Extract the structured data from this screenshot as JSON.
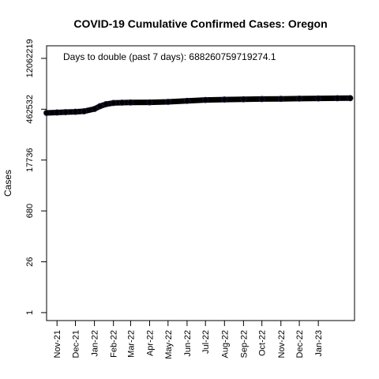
{
  "chart_data": {
    "type": "line",
    "title": "COVID-19 Cumulative Confirmed Cases: Oregon",
    "xlabel": "",
    "ylabel": "Cases",
    "y_scale": "log",
    "annotation": "Days to double (past 7 days): 688260759719274.1",
    "y_ticks": [
      "1",
      "26",
      "680",
      "17736",
      "462532",
      "12062219"
    ],
    "y_tick_values": [
      1,
      26,
      680,
      17736,
      462532,
      12062219
    ],
    "x_ticks": [
      "Nov-21",
      "Dec-21",
      "Jan-22",
      "Feb-22",
      "Mar-22",
      "Apr-22",
      "May-22",
      "Jun-22",
      "Jul-22",
      "Aug-22",
      "Sep-22",
      "Oct-22",
      "Nov-22",
      "Dec-22",
      "Jan-23"
    ],
    "x_tick_dates": [
      "2021-11-01",
      "2021-12-01",
      "2022-01-01",
      "2022-02-01",
      "2022-03-01",
      "2022-04-01",
      "2022-05-01",
      "2022-06-01",
      "2022-07-01",
      "2022-08-01",
      "2022-09-01",
      "2022-10-01",
      "2022-11-01",
      "2022-12-01",
      "2023-01-01"
    ],
    "xlim": [
      "2021-10-15",
      "2023-03-01"
    ],
    "ylim": [
      0.6,
      27000000
    ],
    "grid": false,
    "series": [
      {
        "color": "#000000",
        "points": [
          [
            "2021-10-15",
            365000
          ],
          [
            "2021-11-01",
            375000
          ],
          [
            "2021-11-15",
            383000
          ],
          [
            "2021-12-01",
            392000
          ],
          [
            "2021-12-15",
            405000
          ],
          [
            "2022-01-01",
            470000
          ],
          [
            "2022-01-10",
            560000
          ],
          [
            "2022-01-20",
            640000
          ],
          [
            "2022-02-01",
            690000
          ],
          [
            "2022-02-15",
            705000
          ],
          [
            "2022-03-01",
            712000
          ],
          [
            "2022-04-01",
            718000
          ],
          [
            "2022-05-01",
            740000
          ],
          [
            "2022-06-01",
            790000
          ],
          [
            "2022-07-01",
            835000
          ],
          [
            "2022-08-01",
            860000
          ],
          [
            "2022-09-01",
            875000
          ],
          [
            "2022-10-01",
            888000
          ],
          [
            "2022-11-01",
            898000
          ],
          [
            "2022-12-01",
            912000
          ],
          [
            "2023-01-01",
            925000
          ],
          [
            "2023-02-01",
            935000
          ],
          [
            "2023-02-22",
            940000
          ]
        ]
      }
    ]
  }
}
